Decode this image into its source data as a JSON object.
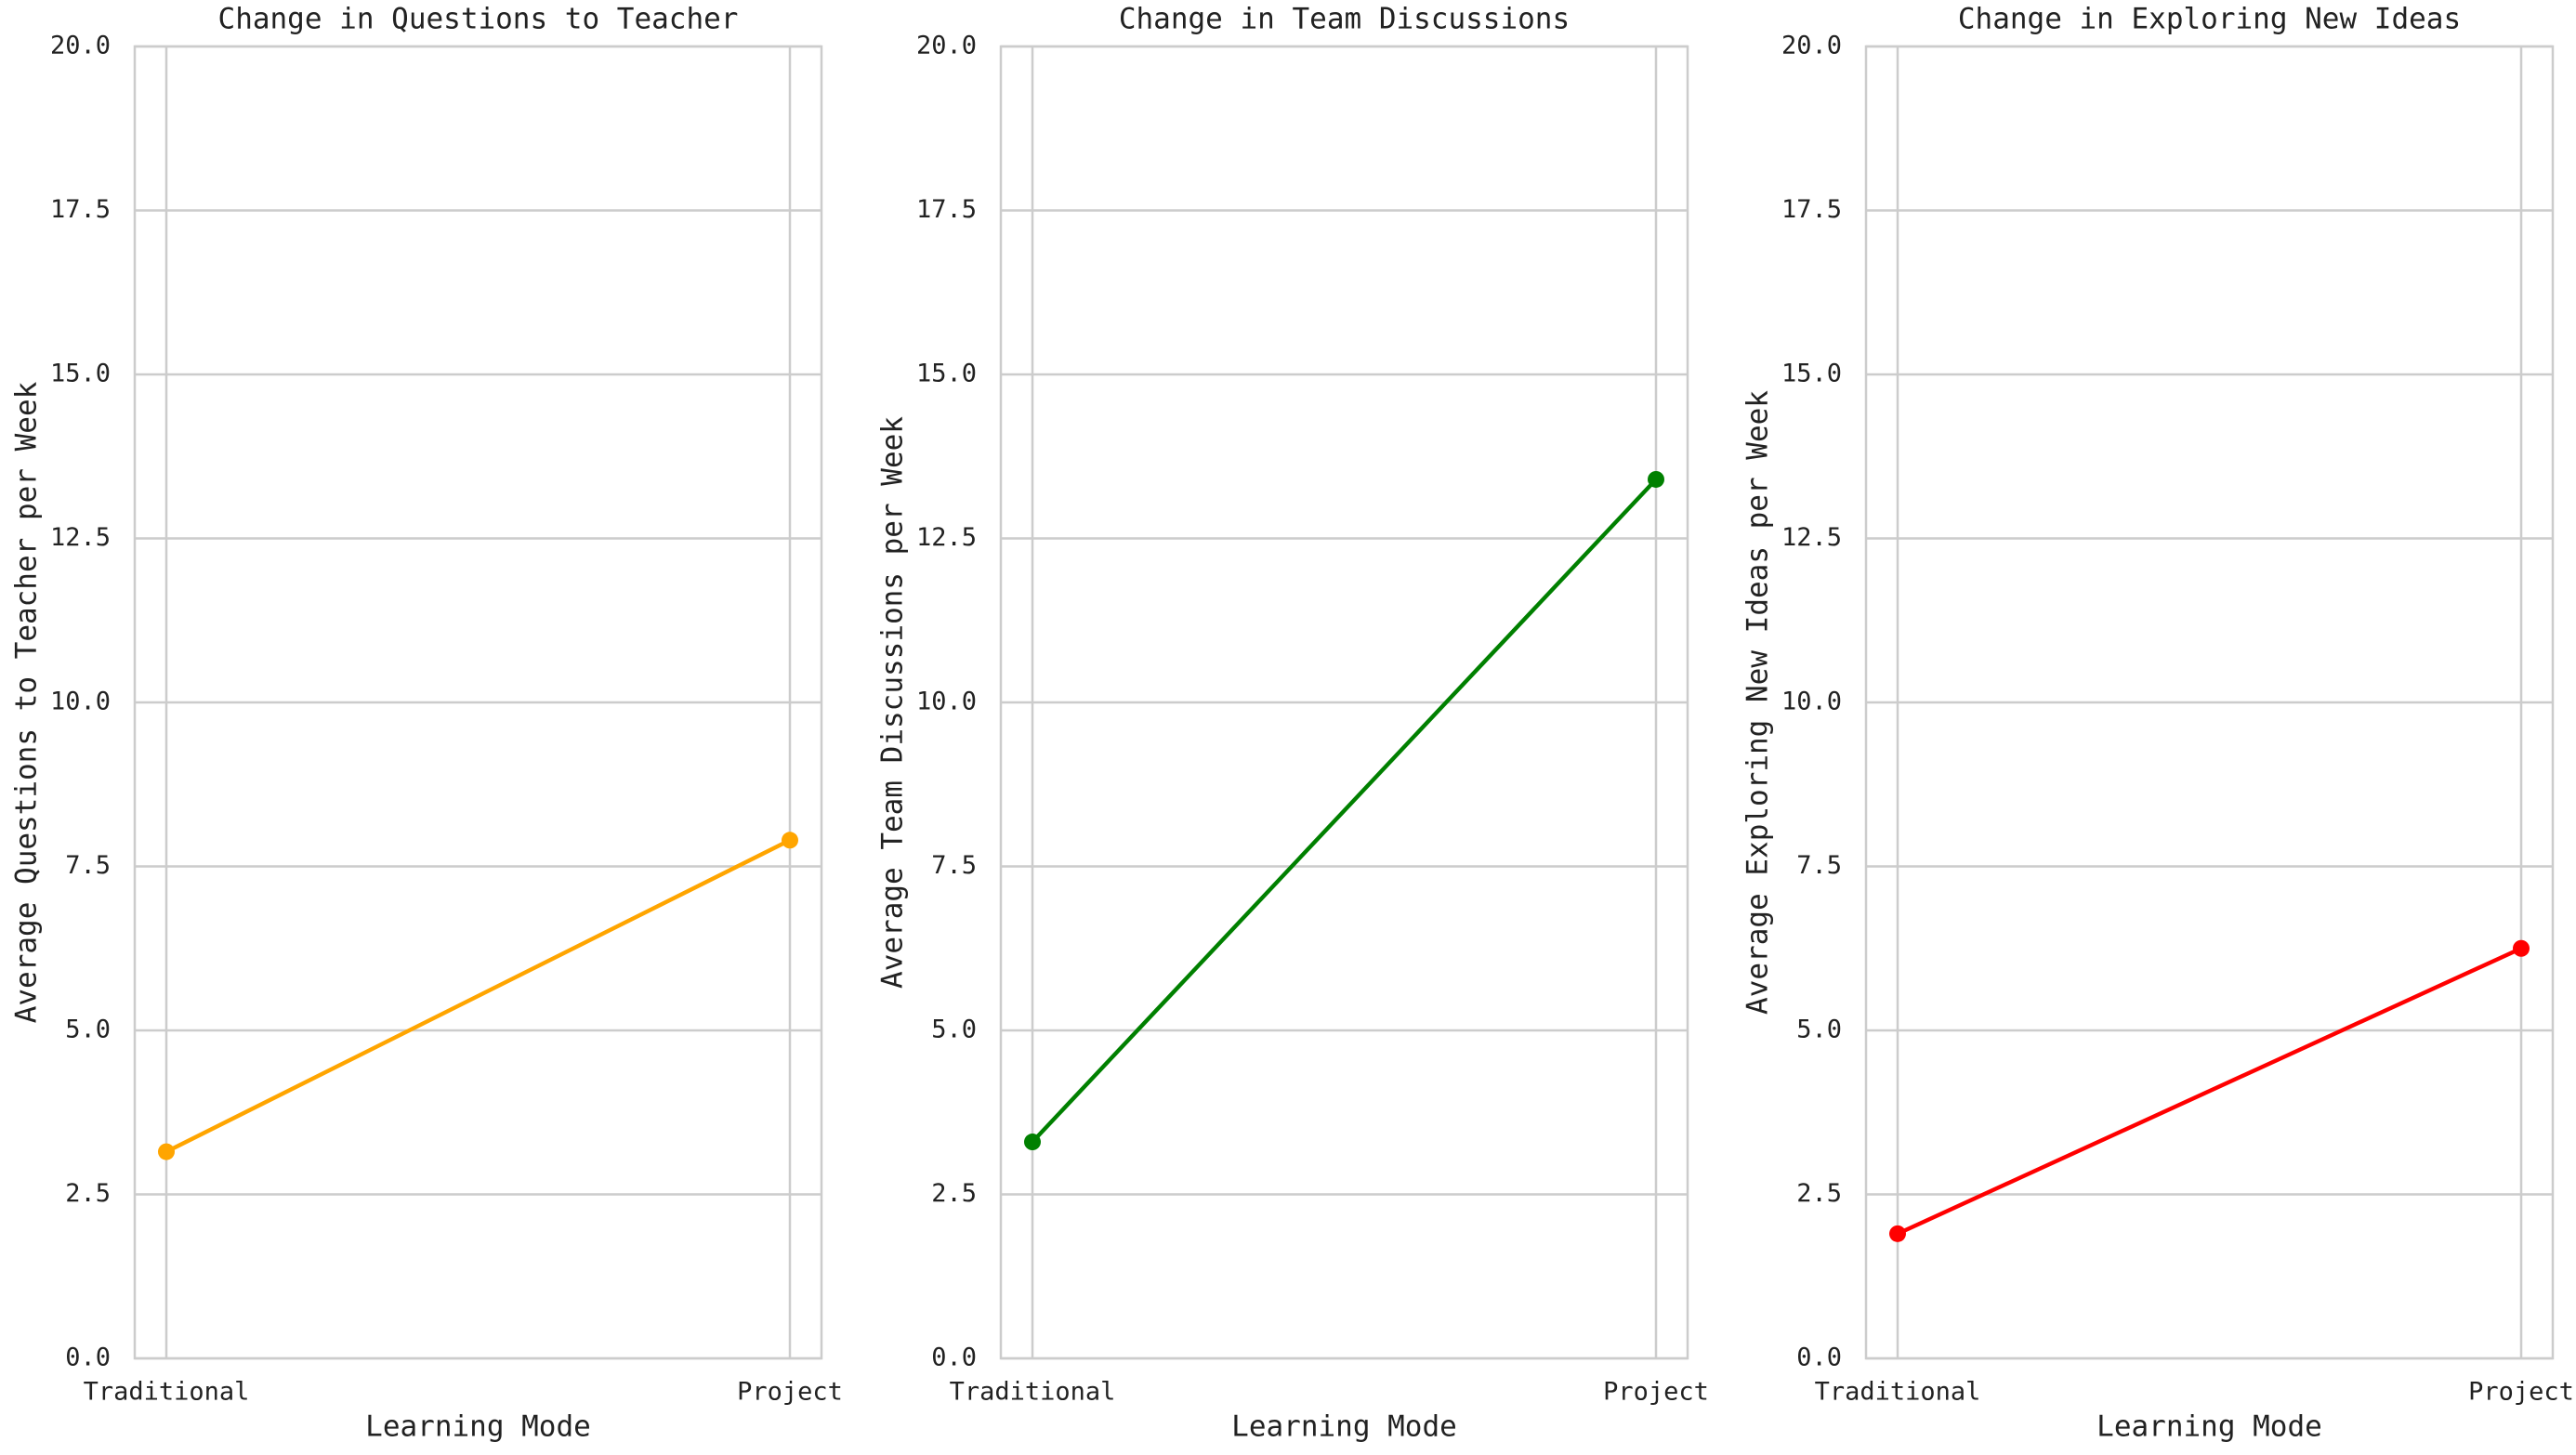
{
  "chart_data": [
    {
      "type": "line",
      "title": "Change in Questions to Teacher",
      "xlabel": "Learning Mode",
      "ylabel": "Average Questions to Teacher per Week",
      "categories": [
        "Traditional",
        "Project"
      ],
      "values": [
        3.15,
        7.9
      ],
      "color": "#ffa500",
      "ylim": [
        0,
        20
      ],
      "yticks": [
        {
          "value": 0,
          "label": "0.0"
        },
        2.5,
        {
          "value": 5,
          "label": "5.0"
        },
        7.5,
        {
          "value": 10,
          "label": "10.0"
        },
        12.5,
        {
          "value": 15,
          "label": "15.0"
        },
        17.5,
        {
          "value": 20,
          "label": "20.0"
        }
      ],
      "grid": true
    },
    {
      "type": "line",
      "title": "Change in Team Discussions",
      "xlabel": "Learning Mode",
      "ylabel": "Average Team Discussions per Week",
      "categories": [
        "Traditional",
        "Project"
      ],
      "values": [
        3.3,
        13.4
      ],
      "color": "#008000",
      "ylim": [
        0,
        20
      ],
      "yticks": [
        {
          "value": 0,
          "label": "0.0"
        },
        2.5,
        {
          "value": 5,
          "label": "5.0"
        },
        7.5,
        {
          "value": 10,
          "label": "10.0"
        },
        12.5,
        {
          "value": 15,
          "label": "15.0"
        },
        17.5,
        {
          "value": 20,
          "label": "20.0"
        }
      ],
      "grid": true
    },
    {
      "type": "line",
      "title": "Change in Exploring New Ideas",
      "xlabel": "Learning Mode",
      "ylabel": "Average Exploring New Ideas per Week",
      "categories": [
        "Traditional",
        "Project"
      ],
      "values": [
        1.9,
        6.25
      ],
      "color": "#ff0000",
      "ylim": [
        0,
        20
      ],
      "yticks": [
        {
          "value": 0,
          "label": "0.0"
        },
        2.5,
        {
          "value": 5,
          "label": "5.0"
        },
        7.5,
        {
          "value": 10,
          "label": "10.0"
        },
        12.5,
        {
          "value": 15,
          "label": "15.0"
        },
        17.5,
        {
          "value": 20,
          "label": "20.0"
        }
      ],
      "grid": true
    }
  ]
}
